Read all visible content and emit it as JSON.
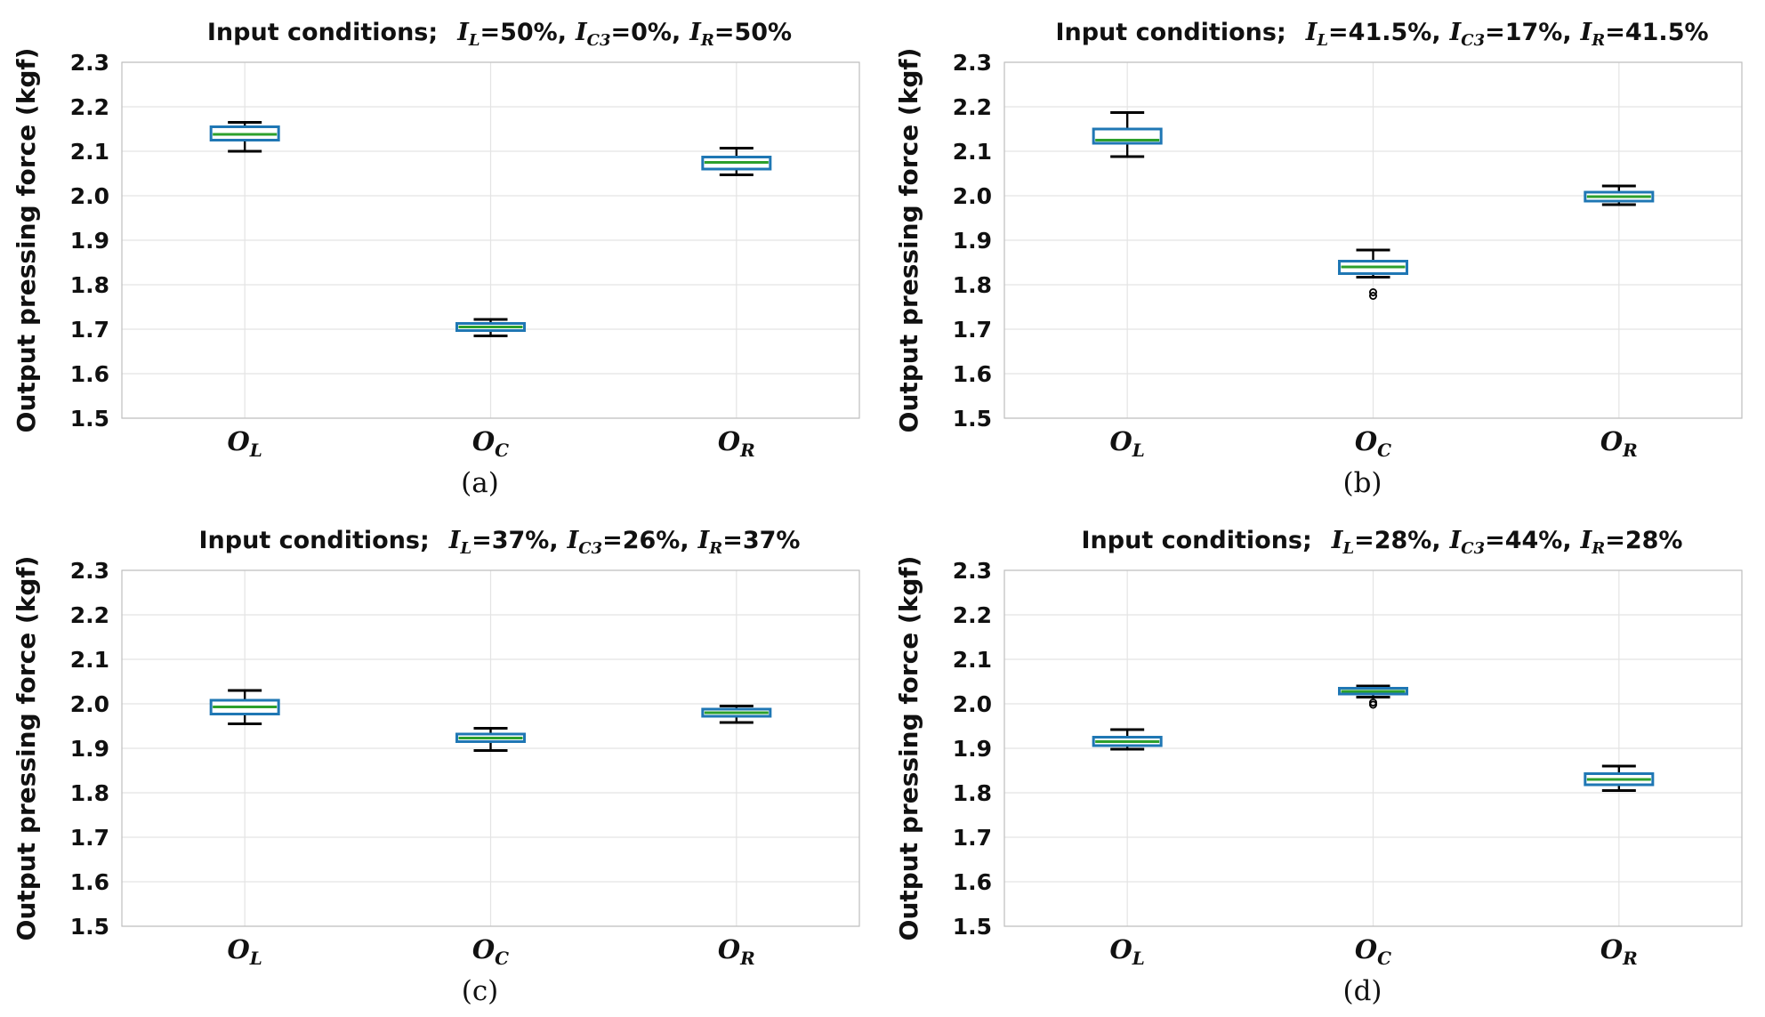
{
  "chart_data": [
    {
      "type": "box",
      "panel_label": "(a)",
      "title": {
        "prefix": "Input conditions;",
        "terms": [
          {
            "var": "I",
            "sub": "L",
            "value": "=50%,"
          },
          {
            "var": "I",
            "sub": "C3",
            "value": "=0%,"
          },
          {
            "var": "I",
            "sub": "R",
            "value": "=50%"
          }
        ]
      },
      "ylabel": "Output pressing force (kgf)",
      "ylim": [
        1.5,
        2.3
      ],
      "yticks": [
        "1.5",
        "1.6",
        "1.7",
        "1.8",
        "1.9",
        "2.0",
        "2.1",
        "2.2",
        "2.3"
      ],
      "grid": true,
      "categories": [
        {
          "var": "O",
          "sub": "L"
        },
        {
          "var": "O",
          "sub": "C"
        },
        {
          "var": "O",
          "sub": "R"
        }
      ],
      "boxes": [
        {
          "whisker_low": 2.1,
          "q1": 2.125,
          "median": 2.138,
          "q3": 2.155,
          "whisker_high": 2.165,
          "outliers": []
        },
        {
          "whisker_low": 1.685,
          "q1": 1.697,
          "median": 1.705,
          "q3": 1.713,
          "whisker_high": 1.722,
          "outliers": []
        },
        {
          "whisker_low": 2.047,
          "q1": 2.06,
          "median": 2.075,
          "q3": 2.087,
          "whisker_high": 2.107,
          "outliers": []
        }
      ]
    },
    {
      "type": "box",
      "panel_label": "(b)",
      "title": {
        "prefix": "Input conditions;",
        "terms": [
          {
            "var": "I",
            "sub": "L",
            "value": "=41.5%,"
          },
          {
            "var": "I",
            "sub": "C3",
            "value": "=17%,"
          },
          {
            "var": "I",
            "sub": "R",
            "value": "=41.5%"
          }
        ]
      },
      "ylabel": "Output pressing force (kgf)",
      "ylim": [
        1.5,
        2.3
      ],
      "yticks": [
        "1.5",
        "1.6",
        "1.7",
        "1.8",
        "1.9",
        "2.0",
        "2.1",
        "2.2",
        "2.3"
      ],
      "grid": true,
      "categories": [
        {
          "var": "O",
          "sub": "L"
        },
        {
          "var": "O",
          "sub": "C"
        },
        {
          "var": "O",
          "sub": "R"
        }
      ],
      "boxes": [
        {
          "whisker_low": 2.088,
          "q1": 2.118,
          "median": 2.125,
          "q3": 2.15,
          "whisker_high": 2.187,
          "outliers": []
        },
        {
          "whisker_low": 1.817,
          "q1": 1.825,
          "median": 1.84,
          "q3": 1.853,
          "whisker_high": 1.878,
          "outliers": [
            1.775,
            1.783
          ]
        },
        {
          "whisker_low": 1.98,
          "q1": 1.988,
          "median": 1.998,
          "q3": 2.008,
          "whisker_high": 2.022,
          "outliers": []
        }
      ]
    },
    {
      "type": "box",
      "panel_label": "(c)",
      "title": {
        "prefix": "Input conditions;",
        "terms": [
          {
            "var": "I",
            "sub": "L",
            "value": "=37%,"
          },
          {
            "var": "I",
            "sub": "C3",
            "value": "=26%,"
          },
          {
            "var": "I",
            "sub": "R",
            "value": "=37%"
          }
        ]
      },
      "ylabel": "Output pressing force (kgf)",
      "ylim": [
        1.5,
        2.3
      ],
      "yticks": [
        "1.5",
        "1.6",
        "1.7",
        "1.8",
        "1.9",
        "2.0",
        "2.1",
        "2.2",
        "2.3"
      ],
      "grid": true,
      "categories": [
        {
          "var": "O",
          "sub": "L"
        },
        {
          "var": "O",
          "sub": "C"
        },
        {
          "var": "O",
          "sub": "R"
        }
      ],
      "boxes": [
        {
          "whisker_low": 1.955,
          "q1": 1.977,
          "median": 1.993,
          "q3": 2.008,
          "whisker_high": 2.03,
          "outliers": []
        },
        {
          "whisker_low": 1.895,
          "q1": 1.915,
          "median": 1.923,
          "q3": 1.932,
          "whisker_high": 1.945,
          "outliers": []
        },
        {
          "whisker_low": 1.958,
          "q1": 1.972,
          "median": 1.98,
          "q3": 1.988,
          "whisker_high": 1.995,
          "outliers": []
        }
      ]
    },
    {
      "type": "box",
      "panel_label": "(d)",
      "title": {
        "prefix": "Input conditions;",
        "terms": [
          {
            "var": "I",
            "sub": "L",
            "value": "=28%,"
          },
          {
            "var": "I",
            "sub": "C3",
            "value": "=44%,"
          },
          {
            "var": "I",
            "sub": "R",
            "value": "=28%"
          }
        ]
      },
      "ylabel": "Output pressing force (kgf)",
      "ylim": [
        1.5,
        2.3
      ],
      "yticks": [
        "1.5",
        "1.6",
        "1.7",
        "1.8",
        "1.9",
        "2.0",
        "2.1",
        "2.2",
        "2.3"
      ],
      "grid": true,
      "categories": [
        {
          "var": "O",
          "sub": "L"
        },
        {
          "var": "O",
          "sub": "C"
        },
        {
          "var": "O",
          "sub": "R"
        }
      ],
      "boxes": [
        {
          "whisker_low": 1.898,
          "q1": 1.906,
          "median": 1.915,
          "q3": 1.925,
          "whisker_high": 1.942,
          "outliers": []
        },
        {
          "whisker_low": 2.015,
          "q1": 2.022,
          "median": 2.028,
          "q3": 2.035,
          "whisker_high": 2.04,
          "outliers": [
            1.998,
            2.003
          ]
        },
        {
          "whisker_low": 1.805,
          "q1": 1.818,
          "median": 1.83,
          "q3": 1.843,
          "whisker_high": 1.86,
          "outliers": []
        }
      ]
    }
  ],
  "colors": {
    "box_edge": "#1f77b4",
    "median": "#2ca02c",
    "whisker": "#000000",
    "grid": "#e4e4e4",
    "axes_edge": "#bfbfbf"
  }
}
